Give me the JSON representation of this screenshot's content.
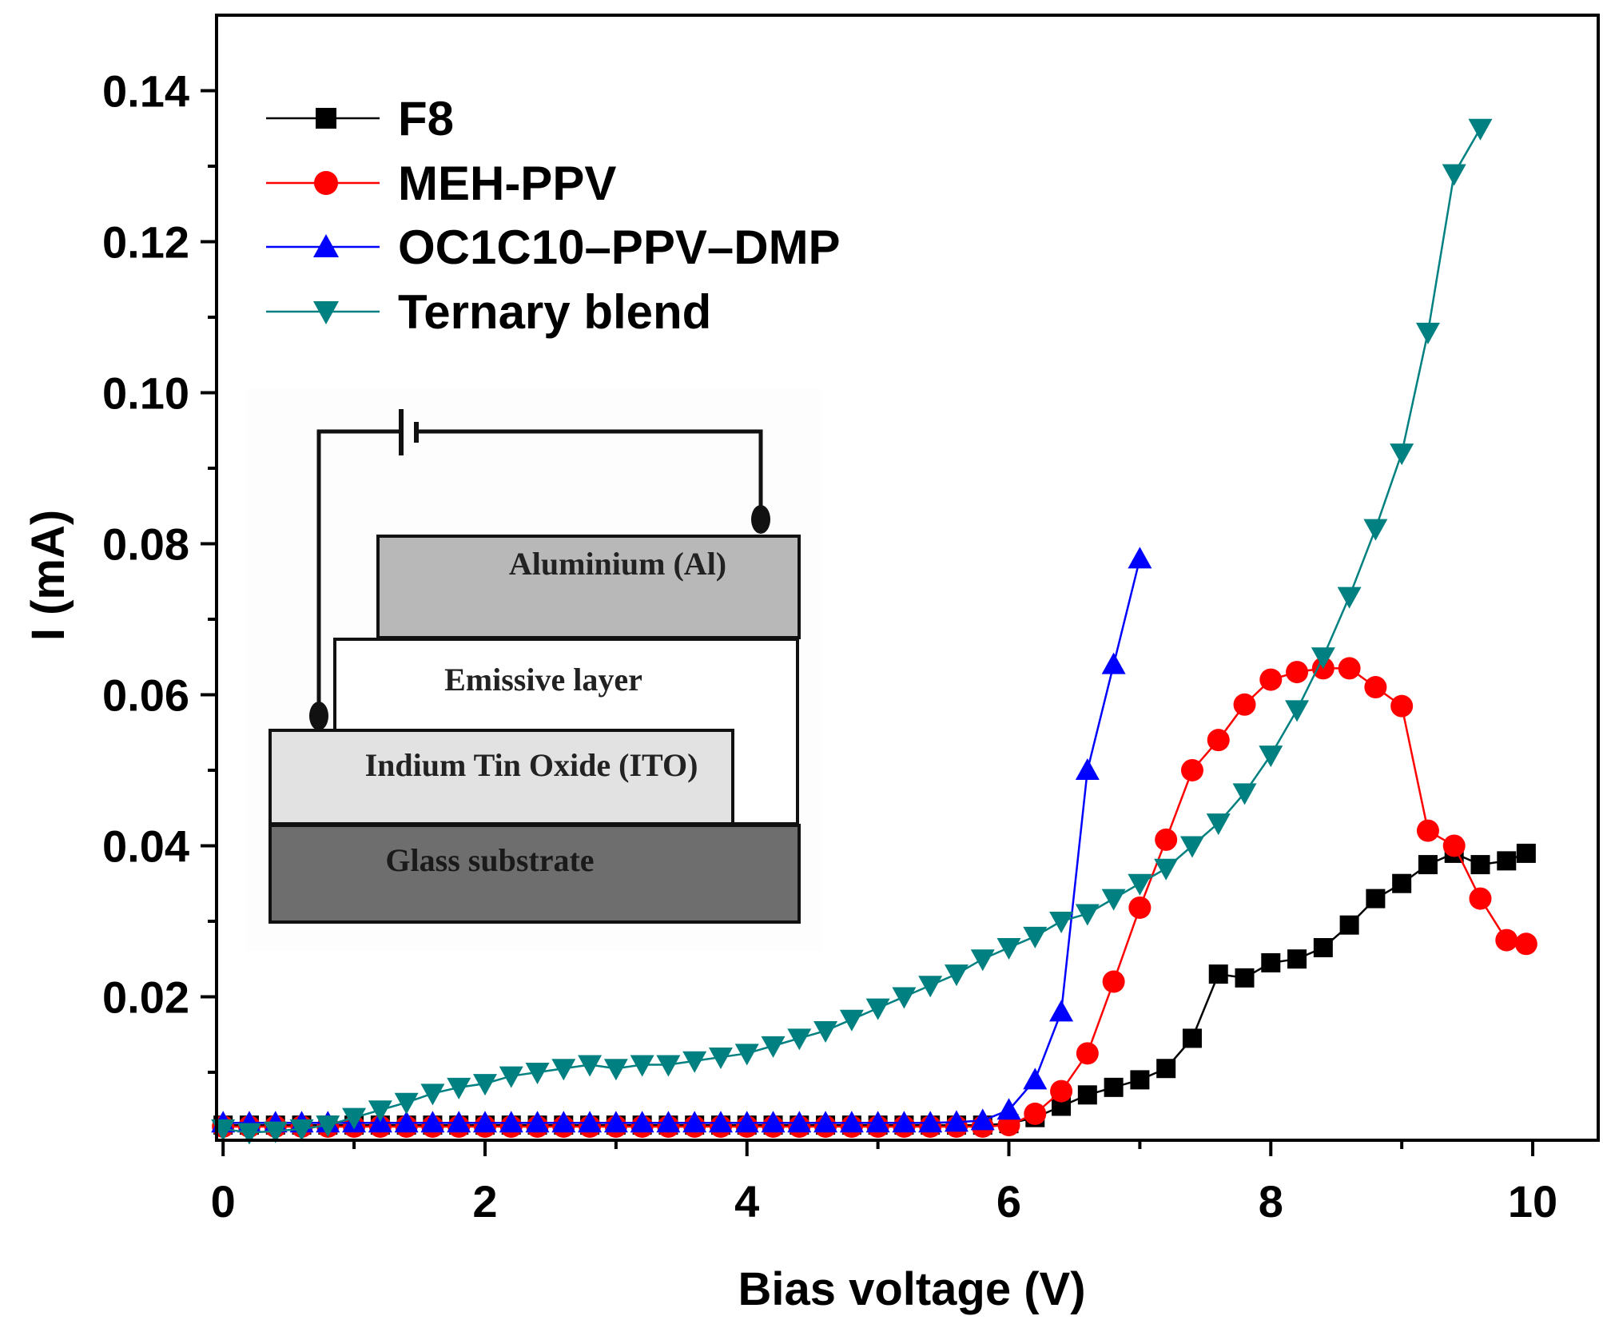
{
  "chart_data": {
    "type": "line",
    "title": "",
    "xlabel": "Bias voltage (V)",
    "ylabel": "I (mA)",
    "xlim": [
      -0.05,
      10.5
    ],
    "ylim": [
      0.001,
      0.15
    ],
    "xticks": [
      "0",
      "2",
      "4",
      "6",
      "8",
      "10"
    ],
    "xtick_values": [
      0,
      2,
      4,
      6,
      8,
      10
    ],
    "yticks": [
      "0.02",
      "0.04",
      "0.06",
      "0.08",
      "0.10",
      "0.12",
      "0.14"
    ],
    "ytick_values": [
      0.02,
      0.04,
      0.06,
      0.08,
      0.1,
      0.12,
      0.14
    ],
    "grid": false,
    "legend_position": "top-left",
    "series": [
      {
        "name": "F8",
        "color": "#000000",
        "marker": "square",
        "x": [
          0,
          0.2,
          0.4,
          0.6,
          0.8,
          1,
          1.2,
          1.4,
          1.6,
          1.8,
          2,
          2.2,
          2.4,
          2.6,
          2.8,
          3,
          3.2,
          3.4,
          3.6,
          3.8,
          4,
          4.2,
          4.4,
          4.6,
          4.8,
          5,
          5.2,
          5.4,
          5.6,
          5.8,
          6,
          6.2,
          6.4,
          6.6,
          6.8,
          7,
          7.2,
          7.4,
          7.6,
          7.8,
          8,
          8.2,
          8.4,
          8.6,
          8.8,
          9,
          9.2,
          9.4,
          9.6,
          9.8,
          9.95
        ],
        "y": [
          0.003,
          0.003,
          0.003,
          0.003,
          0.003,
          0.003,
          0.003,
          0.003,
          0.003,
          0.003,
          0.003,
          0.003,
          0.003,
          0.003,
          0.003,
          0.003,
          0.003,
          0.003,
          0.003,
          0.003,
          0.003,
          0.003,
          0.003,
          0.003,
          0.003,
          0.003,
          0.003,
          0.003,
          0.003,
          0.003,
          0.0032,
          0.004,
          0.0055,
          0.007,
          0.008,
          0.009,
          0.0105,
          0.0145,
          0.023,
          0.0225,
          0.0245,
          0.025,
          0.0265,
          0.0295,
          0.033,
          0.035,
          0.0375,
          0.039,
          0.0375,
          0.038,
          0.039
        ]
      },
      {
        "name": "MEH-PPV",
        "color": "#ff0000",
        "marker": "circle",
        "x": [
          0,
          0.2,
          0.4,
          0.6,
          0.8,
          1,
          1.2,
          1.4,
          1.6,
          1.8,
          2,
          2.2,
          2.4,
          2.6,
          2.8,
          3,
          3.2,
          3.4,
          3.6,
          3.8,
          4,
          4.2,
          4.4,
          4.6,
          4.8,
          5,
          5.2,
          5.4,
          5.6,
          5.8,
          6,
          6.2,
          6.4,
          6.6,
          6.8,
          7,
          7.2,
          7.4,
          7.6,
          7.8,
          8,
          8.2,
          8.4,
          8.6,
          8.8,
          9,
          9.2,
          9.4,
          9.6,
          9.8,
          9.95
        ],
        "y": [
          0.0028,
          0.0028,
          0.0028,
          0.0028,
          0.0028,
          0.0028,
          0.0028,
          0.0028,
          0.0028,
          0.0028,
          0.0028,
          0.0028,
          0.0028,
          0.0028,
          0.0028,
          0.0028,
          0.0028,
          0.0028,
          0.0028,
          0.0028,
          0.0028,
          0.0028,
          0.0028,
          0.0028,
          0.0028,
          0.0028,
          0.0028,
          0.0028,
          0.0028,
          0.0028,
          0.003,
          0.0045,
          0.0075,
          0.0125,
          0.022,
          0.0318,
          0.0408,
          0.05,
          0.054,
          0.0587,
          0.062,
          0.063,
          0.0635,
          0.0635,
          0.061,
          0.0585,
          0.042,
          0.04,
          0.033,
          0.0275,
          0.027
        ]
      },
      {
        "name": "OC1C10–PPV–DMP",
        "color": "#0000ff",
        "marker": "triangle-up",
        "x": [
          0,
          0.2,
          0.4,
          0.6,
          0.8,
          1,
          1.2,
          1.4,
          1.6,
          1.8,
          2,
          2.2,
          2.4,
          2.6,
          2.8,
          3,
          3.2,
          3.4,
          3.6,
          3.8,
          4,
          4.2,
          4.4,
          4.6,
          4.8,
          5,
          5.2,
          5.4,
          5.6,
          5.8,
          6,
          6.2,
          6.4,
          6.6,
          6.8,
          7
        ],
        "y": [
          0.0033,
          0.0033,
          0.0033,
          0.0033,
          0.0033,
          0.0033,
          0.0033,
          0.0033,
          0.0033,
          0.0033,
          0.0033,
          0.0033,
          0.0033,
          0.0033,
          0.0033,
          0.0033,
          0.0033,
          0.0033,
          0.0033,
          0.0033,
          0.0033,
          0.0033,
          0.0033,
          0.0033,
          0.0033,
          0.0033,
          0.0033,
          0.0033,
          0.0034,
          0.0036,
          0.005,
          0.009,
          0.018,
          0.05,
          0.064,
          0.078
        ]
      },
      {
        "name": "Ternary blend",
        "color": "#008080",
        "marker": "triangle-down",
        "x": [
          0,
          0.2,
          0.4,
          0.6,
          0.8,
          1,
          1.2,
          1.4,
          1.6,
          1.8,
          2,
          2.2,
          2.4,
          2.6,
          2.8,
          3,
          3.2,
          3.4,
          3.6,
          3.8,
          4,
          4.2,
          4.4,
          4.6,
          4.8,
          5,
          5.2,
          5.4,
          5.6,
          5.8,
          6,
          6.2,
          6.4,
          6.6,
          6.8,
          7,
          7.2,
          7.4,
          7.6,
          7.8,
          8,
          8.2,
          8.4,
          8.6,
          8.8,
          9,
          9.2,
          9.4,
          9.6
        ],
        "y": [
          0.0025,
          0.002,
          0.0022,
          0.0025,
          0.003,
          0.004,
          0.005,
          0.006,
          0.0072,
          0.008,
          0.0085,
          0.0095,
          0.01,
          0.0105,
          0.011,
          0.0105,
          0.011,
          0.011,
          0.0115,
          0.012,
          0.0125,
          0.0135,
          0.0145,
          0.0155,
          0.017,
          0.0185,
          0.02,
          0.0215,
          0.023,
          0.025,
          0.0265,
          0.028,
          0.03,
          0.031,
          0.033,
          0.035,
          0.037,
          0.04,
          0.043,
          0.047,
          0.052,
          0.058,
          0.065,
          0.073,
          0.082,
          0.092,
          0.108,
          0.129,
          0.135
        ]
      }
    ],
    "inset": {
      "layers": [
        "Aluminium (Al)",
        "Emissive layer",
        "Indium Tin Oxide (ITO)",
        "Glass substrate"
      ]
    }
  }
}
